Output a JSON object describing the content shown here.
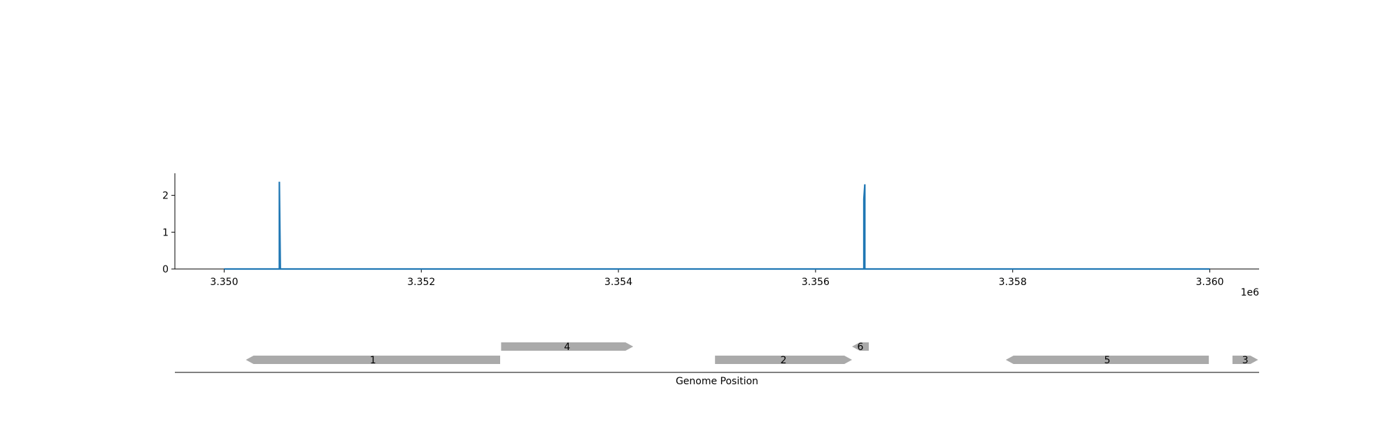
{
  "chart_data": [
    {
      "type": "line",
      "title": "",
      "xlabel": "",
      "ylabel": "",
      "x_offset_label": "1e6",
      "xlim": [
        3349500,
        3360500
      ],
      "ylim": [
        0,
        2.6
      ],
      "x_ticks": [
        3350000,
        3352000,
        3354000,
        3356000,
        3358000,
        3360000
      ],
      "x_tick_labels": [
        "3.350",
        "3.352",
        "3.354",
        "3.356",
        "3.358",
        "3.360"
      ],
      "y_ticks": [
        0,
        1,
        2
      ],
      "y_tick_labels": [
        "0",
        "1",
        "2"
      ],
      "grid": false,
      "series": [
        {
          "color": "#1f77b4",
          "x": [
            3350000,
            3350560,
            3350560,
            3350570,
            3356490,
            3356490,
            3356500,
            3356500,
            3356510,
            3360000
          ],
          "y": [
            0,
            0,
            2.37,
            0,
            0,
            1.9,
            2.3,
            0,
            0,
            0
          ]
        }
      ]
    },
    {
      "type": "gene_track",
      "xlabel": "Genome Position",
      "xlim": [
        3349500,
        3360500
      ],
      "color": "#aaaaaa",
      "features": [
        {
          "label": "1",
          "start": 3350220,
          "end": 3352800,
          "strand": "-",
          "row": 0
        },
        {
          "label": "4",
          "start": 3352810,
          "end": 3354150,
          "strand": "+",
          "row": 1
        },
        {
          "label": "2",
          "start": 3354980,
          "end": 3356370,
          "strand": "+",
          "row": 0
        },
        {
          "label": "6",
          "start": 3356370,
          "end": 3356540,
          "strand": "-",
          "row": 1
        },
        {
          "label": "5",
          "start": 3357930,
          "end": 3359990,
          "strand": "-",
          "row": 0
        },
        {
          "label": "3",
          "start": 3360230,
          "end": 3360490,
          "strand": "+",
          "row": 0
        }
      ]
    }
  ]
}
